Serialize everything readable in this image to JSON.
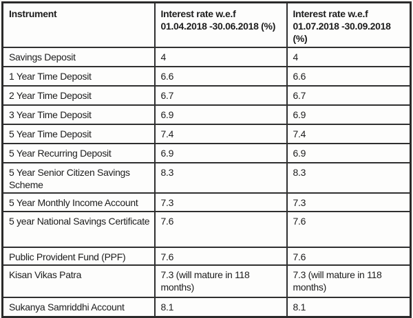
{
  "colors": {
    "table_border": "#2f2f2f",
    "text": "#1c1c1c",
    "cell_background": "#fdfdfc",
    "page_background": "#f6f5f3"
  },
  "table": {
    "header": {
      "instrument": "Instrument",
      "rate1_line1": "Interest rate w.e.f",
      "rate1_line2": "01.04.2018 -30.06.2018 (%)",
      "rate2_line1": "Interest rate w.e.f",
      "rate2_line2": "01.07.2018 -30.09.2018 (%)"
    },
    "rows": [
      {
        "instrument": "Savings Deposit",
        "rate_apr_jun_2018": "4",
        "rate_jul_sep_2018": "4"
      },
      {
        "instrument": "1 Year Time Deposit",
        "rate_apr_jun_2018": "6.6",
        "rate_jul_sep_2018": "6.6"
      },
      {
        "instrument": "2 Year Time Deposit",
        "rate_apr_jun_2018": "6.7",
        "rate_jul_sep_2018": "6.7"
      },
      {
        "instrument": "3 Year Time Deposit",
        "rate_apr_jun_2018": "6.9",
        "rate_jul_sep_2018": "6.9"
      },
      {
        "instrument": "5 Year Time Deposit",
        "rate_apr_jun_2018": "7.4",
        "rate_jul_sep_2018": "7.4"
      },
      {
        "instrument": "5 Year Recurring Deposit",
        "rate_apr_jun_2018": "6.9",
        "rate_jul_sep_2018": "6.9"
      },
      {
        "instrument": "5 Year Senior Citizen Savings Scheme",
        "rate_apr_jun_2018": "8.3",
        "rate_jul_sep_2018": "8.3"
      },
      {
        "instrument": "5 Year Monthly Income Account",
        "rate_apr_jun_2018": "7.3",
        "rate_jul_sep_2018": "7.3"
      },
      {
        "instrument": "5 year National Savings Certificate",
        "rate_apr_jun_2018": "7.6",
        "rate_jul_sep_2018": "7.6"
      },
      {
        "instrument": "Public Provident Fund (PPF)",
        "rate_apr_jun_2018": "7.6",
        "rate_jul_sep_2018": "7.6"
      },
      {
        "instrument": "Kisan Vikas Patra",
        "rate_apr_jun_2018": "7.3 (will mature in 118 months)",
        "rate_jul_sep_2018": "7.3 (will mature in 118 months)"
      },
      {
        "instrument": "Sukanya Samriddhi Account",
        "rate_apr_jun_2018": "8.1",
        "rate_jul_sep_2018": "8.1"
      }
    ]
  }
}
